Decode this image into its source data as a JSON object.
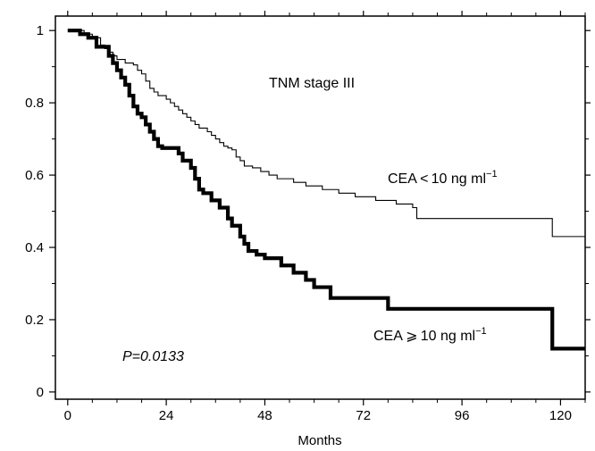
{
  "chart_data": {
    "type": "line",
    "subtype": "kaplan-meier",
    "title": "",
    "xlabel": "Months",
    "ylabel": "",
    "xlim": [
      -3,
      126
    ],
    "ylim": [
      -0.02,
      1.04
    ],
    "x_ticks": [
      0,
      24,
      48,
      72,
      96,
      120
    ],
    "y_ticks": [
      0,
      0.2,
      0.4,
      0.6,
      0.8,
      1
    ],
    "x_tick_labels": [
      "0",
      "24",
      "48",
      "72",
      "96",
      "120"
    ],
    "y_tick_labels": [
      "0",
      "0.2",
      "0.4",
      "0.6",
      "0.8",
      "1"
    ],
    "grid": false,
    "annotations": {
      "stage": "TNM stage III",
      "p_value": "P=0.0133",
      "low_label_main": "CEA < 10 ng ml",
      "low_label_sup": "−1",
      "high_label_main": "CEA ⩾ 10 ng ml",
      "high_label_sup": "−1"
    },
    "series": [
      {
        "label_key": "low",
        "color": "#000000",
        "style": "thin-step",
        "points": [
          [
            0,
            1
          ],
          [
            4,
            0.99
          ],
          [
            6,
            0.98
          ],
          [
            8,
            0.96
          ],
          [
            9,
            0.95
          ],
          [
            10,
            0.94
          ],
          [
            11,
            0.93
          ],
          [
            12,
            0.92
          ],
          [
            14,
            0.91
          ],
          [
            16,
            0.905
          ],
          [
            17,
            0.89
          ],
          [
            18,
            0.88
          ],
          [
            19,
            0.86
          ],
          [
            20,
            0.84
          ],
          [
            21,
            0.83
          ],
          [
            22,
            0.82
          ],
          [
            24,
            0.81
          ],
          [
            25,
            0.8
          ],
          [
            26,
            0.79
          ],
          [
            27,
            0.78
          ],
          [
            28,
            0.77
          ],
          [
            29,
            0.76
          ],
          [
            30,
            0.75
          ],
          [
            31,
            0.74
          ],
          [
            32,
            0.73
          ],
          [
            34,
            0.72
          ],
          [
            35,
            0.71
          ],
          [
            36,
            0.7
          ],
          [
            37,
            0.69
          ],
          [
            38,
            0.68
          ],
          [
            39,
            0.675
          ],
          [
            40,
            0.67
          ],
          [
            41,
            0.65
          ],
          [
            42,
            0.64
          ],
          [
            43,
            0.625
          ],
          [
            45,
            0.62
          ],
          [
            47,
            0.61
          ],
          [
            49,
            0.6
          ],
          [
            51,
            0.59
          ],
          [
            55,
            0.58
          ],
          [
            58,
            0.57
          ],
          [
            62,
            0.56
          ],
          [
            66,
            0.55
          ],
          [
            70,
            0.54
          ],
          [
            75,
            0.53
          ],
          [
            80,
            0.52
          ],
          [
            84,
            0.51
          ],
          [
            85,
            0.48
          ],
          [
            118,
            0.48
          ],
          [
            118,
            0.43
          ],
          [
            126,
            0.43
          ]
        ]
      },
      {
        "label_key": "high",
        "color": "#000000",
        "style": "thick-step",
        "points": [
          [
            0,
            1
          ],
          [
            3,
            0.99
          ],
          [
            5,
            0.98
          ],
          [
            7,
            0.955
          ],
          [
            10,
            0.93
          ],
          [
            11,
            0.91
          ],
          [
            12,
            0.89
          ],
          [
            13,
            0.87
          ],
          [
            14,
            0.85
          ],
          [
            15,
            0.82
          ],
          [
            16,
            0.79
          ],
          [
            17,
            0.77
          ],
          [
            18,
            0.76
          ],
          [
            19,
            0.74
          ],
          [
            20,
            0.72
          ],
          [
            21,
            0.7
          ],
          [
            22,
            0.68
          ],
          [
            23,
            0.675
          ],
          [
            27,
            0.66
          ],
          [
            28,
            0.64
          ],
          [
            30,
            0.62
          ],
          [
            31,
            0.59
          ],
          [
            32,
            0.56
          ],
          [
            33,
            0.55
          ],
          [
            35,
            0.53
          ],
          [
            37,
            0.51
          ],
          [
            39,
            0.48
          ],
          [
            40,
            0.46
          ],
          [
            42,
            0.43
          ],
          [
            43,
            0.41
          ],
          [
            44,
            0.39
          ],
          [
            46,
            0.38
          ],
          [
            48,
            0.37
          ],
          [
            52,
            0.35
          ],
          [
            55,
            0.33
          ],
          [
            58,
            0.31
          ],
          [
            60,
            0.29
          ],
          [
            64,
            0.26
          ],
          [
            78,
            0.23
          ],
          [
            118,
            0.23
          ],
          [
            118,
            0.12
          ],
          [
            126,
            0.12
          ]
        ]
      }
    ]
  }
}
